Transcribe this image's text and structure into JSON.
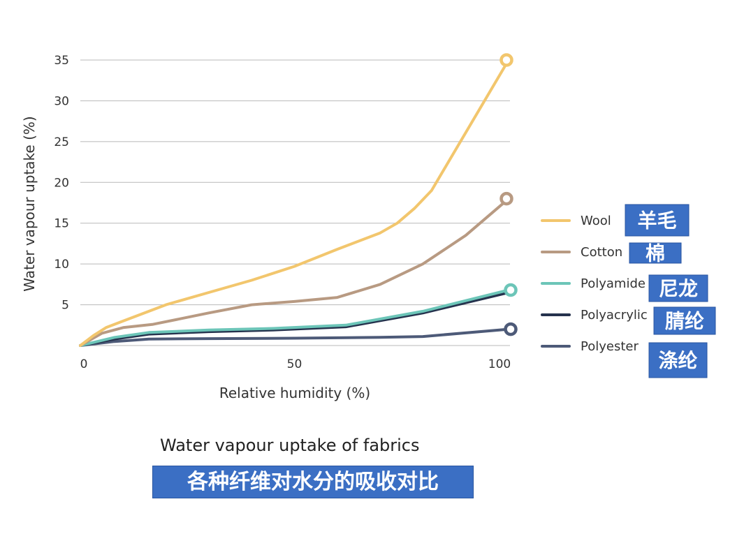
{
  "chart_data": {
    "type": "line",
    "title": "Water vapour uptake of fabrics",
    "subtitle": "各种纤维对水分的吸收对比",
    "xlabel": "Relative humidity (%)",
    "ylabel": "Water vapour uptake (%)",
    "xlim": [
      0,
      100
    ],
    "ylim": [
      0,
      35
    ],
    "x_ticks": [
      0,
      50,
      100
    ],
    "y_ticks": [
      5,
      10,
      15,
      20,
      25,
      30,
      35
    ],
    "grid": "horizontal",
    "legend_position": "right",
    "series": [
      {
        "name": "Wool",
        "cn_name": "羊毛",
        "color": "#f2c66d",
        "end_marker": true,
        "points": [
          [
            0,
            0
          ],
          [
            3,
            1.2
          ],
          [
            6,
            2.2
          ],
          [
            10,
            3.0
          ],
          [
            20,
            5.0
          ],
          [
            30,
            6.5
          ],
          [
            40,
            8.0
          ],
          [
            50,
            9.7
          ],
          [
            60,
            11.8
          ],
          [
            70,
            13.8
          ],
          [
            74,
            15.0
          ],
          [
            78,
            16.8
          ],
          [
            82,
            19.0
          ],
          [
            100,
            35.0
          ]
        ]
      },
      {
        "name": "Cotton",
        "cn_name": "棉",
        "color": "#b89a82",
        "end_marker": true,
        "points": [
          [
            0,
            0
          ],
          [
            5,
            1.5
          ],
          [
            10,
            2.2
          ],
          [
            17,
            2.6
          ],
          [
            30,
            4.0
          ],
          [
            40,
            5.0
          ],
          [
            50,
            5.4
          ],
          [
            60,
            5.9
          ],
          [
            70,
            7.5
          ],
          [
            80,
            10.0
          ],
          [
            90,
            13.5
          ],
          [
            100,
            18.0
          ]
        ]
      },
      {
        "name": "Polyamide",
        "cn_name": "尼龙",
        "color": "#6cc5b8",
        "end_marker": true,
        "points": [
          [
            0,
            0
          ],
          [
            8,
            1.0
          ],
          [
            16,
            1.6
          ],
          [
            30,
            1.9
          ],
          [
            45,
            2.1
          ],
          [
            62,
            2.5
          ],
          [
            80,
            4.2
          ],
          [
            100,
            6.8
          ]
        ]
      },
      {
        "name": "Polyacrylic",
        "cn_name": "腈纶",
        "color": "#25324d",
        "end_marker": false,
        "points": [
          [
            0,
            0
          ],
          [
            8,
            0.8
          ],
          [
            16,
            1.4
          ],
          [
            30,
            1.7
          ],
          [
            45,
            1.9
          ],
          [
            62,
            2.3
          ],
          [
            80,
            4.0
          ],
          [
            100,
            6.5
          ]
        ]
      },
      {
        "name": "Polyester",
        "cn_name": "涤纶",
        "color": "#4d5a78",
        "end_marker": true,
        "points": [
          [
            0,
            0
          ],
          [
            8,
            0.5
          ],
          [
            16,
            0.8
          ],
          [
            30,
            0.85
          ],
          [
            50,
            0.9
          ],
          [
            70,
            1.0
          ],
          [
            80,
            1.1
          ],
          [
            100,
            2.0
          ]
        ]
      }
    ]
  }
}
